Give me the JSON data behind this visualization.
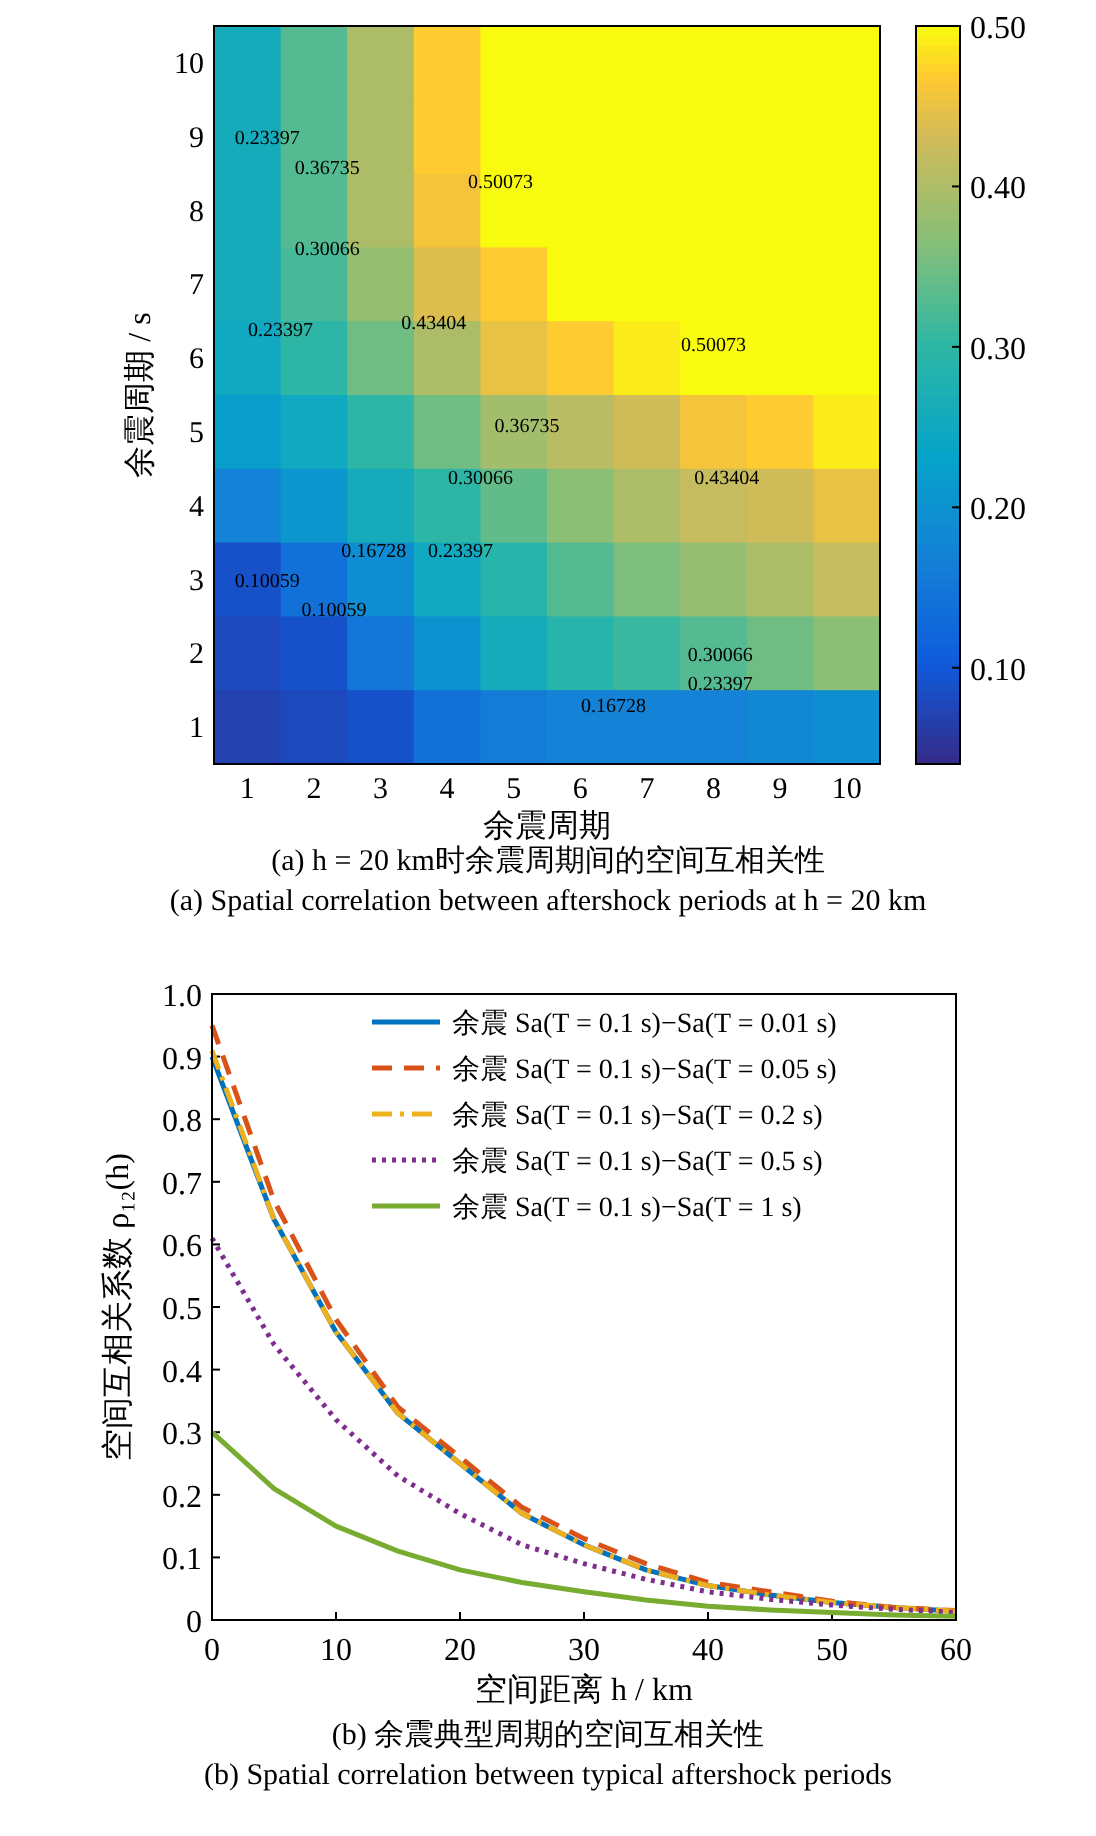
{
  "chart_data": [
    {
      "type": "heatmap",
      "xlabel": "余震周期",
      "ylabel": "余震周期 / s",
      "categories": [
        "1",
        "2",
        "3",
        "4",
        "5",
        "6",
        "7",
        "8",
        "9",
        "10"
      ],
      "y_categories": [
        "10",
        "9",
        "8",
        "7",
        "6",
        "5",
        "4",
        "3",
        "2",
        "1"
      ],
      "cells": [
        [
          0.26,
          0.33,
          0.4,
          0.47,
          0.5,
          0.5,
          0.5,
          0.5,
          0.5,
          0.5
        ],
        [
          0.26,
          0.33,
          0.4,
          0.47,
          0.5,
          0.5,
          0.5,
          0.5,
          0.5,
          0.5
        ],
        [
          0.26,
          0.33,
          0.4,
          0.46,
          0.5,
          0.5,
          0.5,
          0.5,
          0.5,
          0.5
        ],
        [
          0.26,
          0.32,
          0.38,
          0.44,
          0.47,
          0.5,
          0.5,
          0.5,
          0.5,
          0.5
        ],
        [
          0.25,
          0.3,
          0.35,
          0.4,
          0.45,
          0.47,
          0.49,
          0.5,
          0.5,
          0.5
        ],
        [
          0.22,
          0.25,
          0.3,
          0.35,
          0.39,
          0.41,
          0.43,
          0.46,
          0.47,
          0.49
        ],
        [
          0.17,
          0.21,
          0.26,
          0.3,
          0.34,
          0.37,
          0.4,
          0.42,
          0.43,
          0.45
        ],
        [
          0.09,
          0.14,
          0.19,
          0.25,
          0.29,
          0.33,
          0.36,
          0.38,
          0.4,
          0.42
        ],
        [
          0.08,
          0.09,
          0.15,
          0.2,
          0.26,
          0.29,
          0.31,
          0.33,
          0.35,
          0.37
        ],
        [
          0.07,
          0.08,
          0.09,
          0.14,
          0.16,
          0.17,
          0.17,
          0.17,
          0.18,
          0.19
        ]
      ],
      "clim": [
        0.04,
        0.5
      ],
      "cticks": [
        {
          "value": 0.1,
          "label": "0.10"
        },
        {
          "value": 0.2,
          "label": "0.20"
        },
        {
          "value": 0.3,
          "label": "0.30"
        },
        {
          "value": 0.4,
          "label": "0.40"
        },
        {
          "value": 0.5,
          "label": "0.50"
        }
      ],
      "annotations": [
        "0.50073",
        "0.50073",
        "0.43404",
        "0.43404",
        "0.36735",
        "0.36735",
        "0.30066",
        "0.30066",
        "0.30066",
        "0.23397",
        "0.23397",
        "0.23397",
        "0.23397",
        "0.16728",
        "0.16728",
        "0.10059",
        "0.10059",
        "(a) h = 20 km时余震周期间的空间互相关性",
        "(a) Spatial correlation between aftershock periods at h = 20 km"
      ]
    },
    {
      "type": "line",
      "xlabel": "空间距离 h / km",
      "ylabel": "空间互相关系数 ρ₁₂(h)",
      "x": [
        0,
        5,
        10,
        15,
        20,
        25,
        30,
        35,
        40,
        45,
        50,
        55,
        60
      ],
      "series": [
        {
          "name": "余震 Sa(T = 0.1 s)−Sa(T = 0.01 s)",
          "color": "#0072bd",
          "line_style": "solid",
          "values": [
            0.9,
            0.64,
            0.46,
            0.33,
            0.25,
            0.17,
            0.12,
            0.08,
            0.055,
            0.04,
            0.028,
            0.02,
            0.014
          ]
        },
        {
          "name": "余震 Sa(T = 0.1 s)−Sa(T = 0.05 s)",
          "color": "#d95319",
          "line_style": "dashed",
          "values": [
            0.95,
            0.67,
            0.48,
            0.34,
            0.26,
            0.18,
            0.13,
            0.09,
            0.06,
            0.045,
            0.03,
            0.02,
            0.015
          ]
        },
        {
          "name": "余震 Sa(T = 0.1 s)−Sa(T = 0.2 s)",
          "color": "#edb120",
          "line_style": "dashdot",
          "values": [
            0.91,
            0.64,
            0.46,
            0.33,
            0.25,
            0.17,
            0.12,
            0.08,
            0.055,
            0.04,
            0.028,
            0.02,
            0.014
          ]
        },
        {
          "name": "余震 Sa(T = 0.1 s)−Sa(T = 0.5 s)",
          "color": "#7e2f8e",
          "line_style": "dotted",
          "values": [
            0.61,
            0.44,
            0.32,
            0.23,
            0.17,
            0.12,
            0.09,
            0.065,
            0.045,
            0.033,
            0.024,
            0.017,
            0.012
          ]
        },
        {
          "name": "余震 Sa(T = 0.1 s)−Sa(T = 1 s)",
          "color": "#77ac30",
          "line_style": "solid",
          "values": [
            0.3,
            0.21,
            0.15,
            0.11,
            0.08,
            0.06,
            0.045,
            0.032,
            0.022,
            0.016,
            0.012,
            0.008,
            0.006
          ]
        }
      ],
      "xlim": [
        0,
        60
      ],
      "xticks": [
        0,
        10,
        20,
        30,
        40,
        50,
        60
      ],
      "ylim": [
        0,
        1
      ],
      "yticks": [
        {
          "value": 1,
          "label": "1.0"
        },
        0.9,
        0.8,
        0.7,
        0.6,
        0.5,
        0.4,
        0.3,
        0.2,
        0.1,
        0
      ],
      "legend": "top right",
      "annotations": [
        "(b) 余震典型周期的空间互相关性",
        "(b) Spatial correlation between typical aftershock periods"
      ]
    }
  ]
}
